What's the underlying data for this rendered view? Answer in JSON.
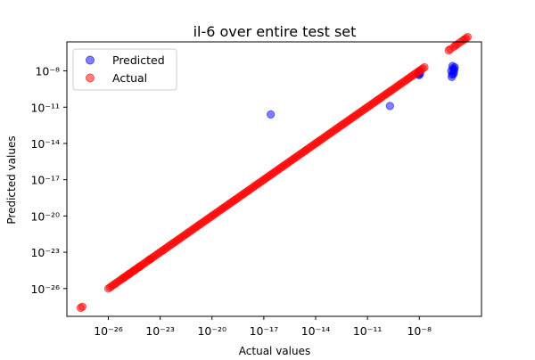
{
  "chart_data": {
    "type": "scatter",
    "title": "il-6 over entire test set",
    "xlabel": "Actual values",
    "ylabel": "Predicted values",
    "xscale": "log",
    "yscale": "log",
    "xlim_exp": [
      -28.4,
      -4.4
    ],
    "ylim_exp": [
      -28.3,
      -5.6
    ],
    "xticks": [
      {
        "exp": -26,
        "label": "10⁻²⁶"
      },
      {
        "exp": -23,
        "label": "10⁻²³"
      },
      {
        "exp": -20,
        "label": "10⁻²⁰"
      },
      {
        "exp": -17,
        "label": "10⁻¹⁷"
      },
      {
        "exp": -14,
        "label": "10⁻¹⁴"
      },
      {
        "exp": -11,
        "label": "10⁻¹¹"
      },
      {
        "exp": -8,
        "label": "10⁻⁸"
      }
    ],
    "yticks": [
      {
        "exp": -26,
        "label": "10⁻²⁶"
      },
      {
        "exp": -23,
        "label": "10⁻²³"
      },
      {
        "exp": -20,
        "label": "10⁻²⁰"
      },
      {
        "exp": -17,
        "label": "10⁻¹⁷"
      },
      {
        "exp": -14,
        "label": "10⁻¹⁴"
      },
      {
        "exp": -11,
        "label": "10⁻¹¹"
      },
      {
        "exp": -8,
        "label": "10⁻⁸"
      }
    ],
    "legend_position": "upper-left",
    "grid": false,
    "series": [
      {
        "name": "Predicted",
        "color": "#0000ff",
        "points": [
          [
            -16.6,
            -11.6
          ],
          [
            -9.7,
            -10.9
          ],
          [
            -8.05,
            -8.3
          ],
          [
            -8.02,
            -8.05
          ],
          [
            -7.95,
            -8.2
          ],
          [
            -8.0,
            -8.35
          ],
          [
            -6.15,
            -8.0
          ],
          [
            -6.1,
            -8.3
          ],
          [
            -6.05,
            -7.8
          ],
          [
            -6.0,
            -8.1
          ],
          [
            -6.08,
            -7.6
          ],
          [
            -5.98,
            -7.9
          ],
          [
            -6.12,
            -8.5
          ],
          [
            -6.02,
            -8.25
          ],
          [
            -5.95,
            -7.7
          ]
        ]
      },
      {
        "name": "Actual",
        "color": "#ff0000",
        "diagonal": {
          "start": -26.0,
          "end": -7.7,
          "step": 0.1
        },
        "extra_points": [
          [
            -27.6,
            -27.6
          ],
          [
            -27.5,
            -27.5
          ],
          [
            -25.1,
            -25.1
          ],
          [
            -24.8,
            -24.8
          ],
          [
            -24.5,
            -24.5
          ],
          [
            -24.2,
            -24.2
          ],
          [
            -23.6,
            -23.6
          ],
          [
            -6.3,
            -6.3
          ],
          [
            -6.2,
            -6.2
          ],
          [
            -6.0,
            -6.0
          ],
          [
            -5.9,
            -5.9
          ],
          [
            -5.8,
            -5.8
          ],
          [
            -5.65,
            -5.65
          ],
          [
            -5.5,
            -5.5
          ],
          [
            -5.4,
            -5.4
          ],
          [
            -5.3,
            -5.3
          ],
          [
            -5.2,
            -5.2
          ]
        ]
      }
    ]
  }
}
